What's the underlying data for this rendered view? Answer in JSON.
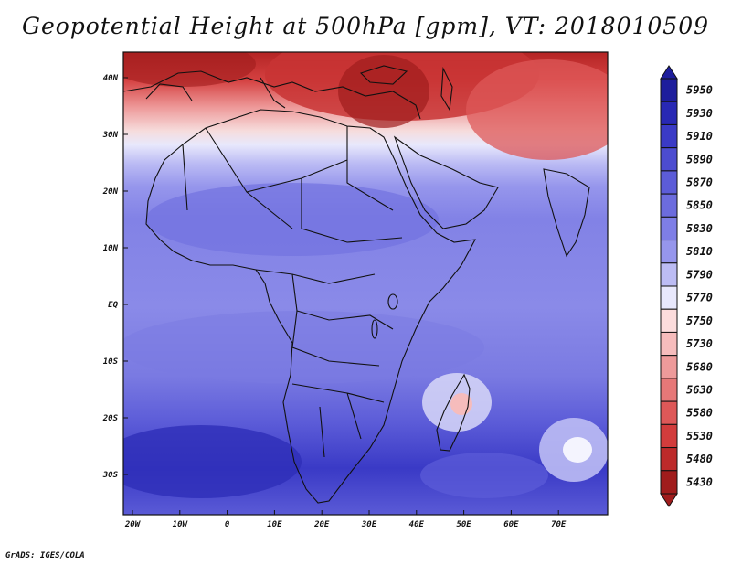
{
  "title": "Geopotential Height at 500hPa [gpm], VT: 2018010509",
  "credit": "GrADS: IGES/COLA",
  "map": {
    "lat_labels": [
      "40N",
      "30N",
      "20N",
      "10N",
      "EQ",
      "10S",
      "20S",
      "30S"
    ],
    "lon_labels": [
      "20W",
      "10W",
      "0",
      "10E",
      "20E",
      "30E",
      "40E",
      "50E",
      "60E",
      "70E"
    ]
  },
  "colorbar": {
    "levels": [
      "5950",
      "5930",
      "5910",
      "5890",
      "5870",
      "5850",
      "5830",
      "5810",
      "5790",
      "5770",
      "5750",
      "5730",
      "5680",
      "5630",
      "5580",
      "5530",
      "5480",
      "5430"
    ],
    "colors": [
      "#1e1e9c",
      "#2828b4",
      "#3a3ac6",
      "#4c4cd0",
      "#5c5cd8",
      "#6c6cde",
      "#7e7ee6",
      "#9696ec",
      "#bcbcf4",
      "#e8e8fc",
      "#fcdcdc",
      "#f6bcbc",
      "#ee9a9a",
      "#e67878",
      "#de5858",
      "#d23c3c",
      "#bc2a2a",
      "#a01c1c"
    ]
  }
}
